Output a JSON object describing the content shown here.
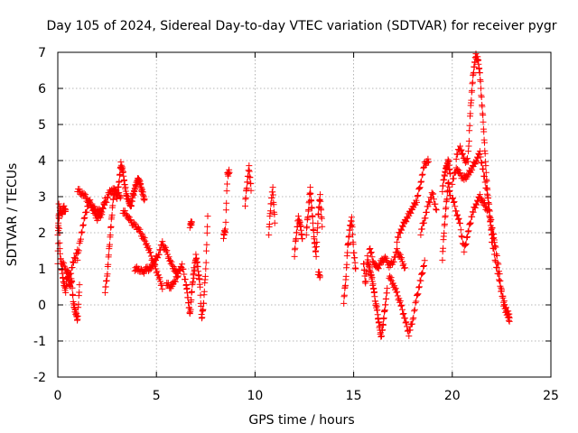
{
  "chart_data": {
    "type": "scatter",
    "title": "Day 105 of 2024, Sidereal Day-to-day VTEC variation (SDTVAR) for receiver pygr",
    "xlabel": "GPS time / hours",
    "ylabel": "SDTVAR / TECUs",
    "xlim": [
      0,
      25
    ],
    "ylim": [
      -2,
      7
    ],
    "xticks": [
      "0",
      "5",
      "10",
      "15",
      "20",
      "25"
    ],
    "yticks": [
      "-2",
      "-1",
      "0",
      "1",
      "2",
      "3",
      "4",
      "5",
      "6",
      "7"
    ],
    "grid": true,
    "marker": "+",
    "color": "#ff0000",
    "series": [
      {
        "name": "pygr",
        "segments": [
          [
            [
              0.0,
              1.2
            ],
            [
              0.05,
              2.8
            ],
            [
              0.1,
              1.5
            ],
            [
              0.2,
              1.0
            ],
            [
              0.3,
              0.6
            ],
            [
              0.4,
              0.4
            ],
            [
              0.5,
              0.9
            ],
            [
              0.6,
              0.5
            ],
            [
              0.7,
              0.7
            ],
            [
              0.8,
              0.0
            ],
            [
              0.9,
              -0.2
            ],
            [
              1.0,
              -0.4
            ],
            [
              1.1,
              0.5
            ]
          ],
          [
            [
              0.0,
              2.0
            ],
            [
              0.1,
              2.7
            ],
            [
              0.2,
              2.5
            ],
            [
              0.3,
              2.7
            ],
            [
              0.4,
              2.6
            ]
          ],
          [
            [
              0.2,
              1.2
            ],
            [
              0.4,
              1.0
            ],
            [
              0.6,
              0.8
            ],
            [
              0.8,
              1.2
            ],
            [
              1.0,
              1.5
            ]
          ],
          [
            [
              1.0,
              1.3
            ],
            [
              1.2,
              2.0
            ],
            [
              1.4,
              2.5
            ],
            [
              1.6,
              2.9
            ],
            [
              1.8,
              2.6
            ],
            [
              2.0,
              2.4
            ],
            [
              2.2,
              2.5
            ],
            [
              2.4,
              2.9
            ]
          ],
          [
            [
              1.0,
              3.2
            ],
            [
              1.2,
              3.1
            ],
            [
              1.4,
              3.0
            ],
            [
              1.6,
              2.8
            ],
            [
              1.8,
              2.7
            ],
            [
              2.0,
              2.6
            ],
            [
              2.2,
              2.6
            ],
            [
              2.4,
              2.8
            ],
            [
              2.6,
              3.1
            ],
            [
              2.8,
              3.2
            ],
            [
              3.0,
              3.1
            ],
            [
              3.2,
              3.0
            ]
          ],
          [
            [
              2.4,
              0.4
            ],
            [
              2.5,
              0.8
            ],
            [
              2.6,
              1.5
            ],
            [
              2.7,
              2.2
            ],
            [
              2.8,
              2.9
            ],
            [
              2.9,
              3.2
            ],
            [
              3.0,
              3.0
            ]
          ],
          [
            [
              3.0,
              3.0
            ],
            [
              3.1,
              3.4
            ],
            [
              3.2,
              3.9
            ],
            [
              3.3,
              3.7
            ],
            [
              3.4,
              3.3
            ],
            [
              3.5,
              3.0
            ],
            [
              3.6,
              2.9
            ],
            [
              3.7,
              2.7
            ],
            [
              3.8,
              3.0
            ],
            [
              3.9,
              3.2
            ],
            [
              4.0,
              3.4
            ],
            [
              4.1,
              3.5
            ],
            [
              4.2,
              3.3
            ],
            [
              4.3,
              3.1
            ],
            [
              4.4,
              2.9
            ]
          ],
          [
            [
              3.3,
              2.6
            ],
            [
              3.5,
              2.5
            ],
            [
              3.7,
              2.3
            ],
            [
              3.9,
              2.2
            ],
            [
              4.1,
              2.1
            ],
            [
              4.3,
              1.9
            ],
            [
              4.5,
              1.7
            ],
            [
              4.7,
              1.4
            ],
            [
              4.9,
              1.1
            ],
            [
              5.1,
              0.8
            ],
            [
              5.3,
              0.5
            ]
          ],
          [
            [
              3.9,
              1.0
            ],
            [
              4.1,
              1.0
            ],
            [
              4.3,
              0.9
            ],
            [
              4.5,
              1.0
            ],
            [
              4.7,
              1.0
            ],
            [
              4.9,
              1.2
            ],
            [
              5.1,
              1.4
            ],
            [
              5.3,
              1.7
            ],
            [
              5.5,
              1.5
            ],
            [
              5.7,
              1.2
            ],
            [
              5.9,
              1.0
            ],
            [
              6.1,
              0.8
            ]
          ],
          [
            [
              5.5,
              0.6
            ],
            [
              5.7,
              0.5
            ],
            [
              5.9,
              0.6
            ],
            [
              6.1,
              0.9
            ],
            [
              6.3,
              1.1
            ],
            [
              6.5,
              0.6
            ],
            [
              6.6,
              0.2
            ],
            [
              6.7,
              -0.3
            ],
            [
              6.8,
              0.4
            ],
            [
              6.9,
              1.0
            ]
          ],
          [
            [
              6.7,
              2.2
            ],
            [
              6.8,
              2.3
            ]
          ],
          [
            [
              6.9,
              0.8
            ],
            [
              7.0,
              1.4
            ],
            [
              7.1,
              1.0
            ],
            [
              7.2,
              0.6
            ],
            [
              7.3,
              -0.4
            ],
            [
              7.4,
              0.1
            ],
            [
              7.5,
              1.0
            ],
            [
              7.6,
              2.4
            ]
          ],
          [
            [
              8.4,
              1.9
            ],
            [
              8.5,
              2.1
            ],
            [
              8.6,
              3.6
            ],
            [
              8.7,
              3.7
            ]
          ],
          [
            [
              9.5,
              2.8
            ],
            [
              9.6,
              3.4
            ],
            [
              9.7,
              3.8
            ],
            [
              9.8,
              3.2
            ]
          ],
          [
            [
              10.7,
              2.0
            ],
            [
              10.8,
              2.8
            ],
            [
              10.9,
              3.2
            ],
            [
              11.0,
              2.3
            ]
          ],
          [
            [
              12.0,
              1.4
            ],
            [
              12.1,
              2.0
            ],
            [
              12.2,
              2.4
            ],
            [
              12.3,
              2.2
            ],
            [
              12.4,
              1.8
            ]
          ],
          [
            [
              12.6,
              2.0
            ],
            [
              12.7,
              2.6
            ],
            [
              12.8,
              3.2
            ],
            [
              12.9,
              2.5
            ],
            [
              13.0,
              1.8
            ],
            [
              13.1,
              1.4
            ],
            [
              13.2,
              2.5
            ],
            [
              13.3,
              3.0
            ],
            [
              13.4,
              2.2
            ]
          ],
          [
            [
              13.2,
              0.9
            ],
            [
              13.3,
              0.8
            ]
          ],
          [
            [
              14.5,
              0.1
            ],
            [
              14.6,
              0.7
            ],
            [
              14.7,
              1.6
            ],
            [
              14.8,
              2.1
            ],
            [
              14.9,
              2.4
            ],
            [
              15.0,
              1.5
            ],
            [
              15.1,
              1.0
            ]
          ],
          [
            [
              15.5,
              1.2
            ],
            [
              15.6,
              0.6
            ],
            [
              15.7,
              1.3
            ],
            [
              15.8,
              1.0
            ],
            [
              15.9,
              0.8
            ],
            [
              16.0,
              0.5
            ],
            [
              16.1,
              0.1
            ],
            [
              16.2,
              -0.2
            ],
            [
              16.3,
              -0.6
            ],
            [
              16.4,
              -0.9
            ],
            [
              16.5,
              -0.5
            ],
            [
              16.6,
              0.0
            ],
            [
              16.7,
              0.4
            ]
          ],
          [
            [
              15.8,
              1.6
            ],
            [
              16.0,
              1.2
            ],
            [
              16.2,
              1.0
            ],
            [
              16.4,
              1.2
            ],
            [
              16.6,
              1.3
            ],
            [
              16.8,
              1.1
            ],
            [
              17.0,
              1.2
            ],
            [
              17.2,
              1.5
            ],
            [
              17.4,
              1.3
            ],
            [
              17.6,
              1.0
            ]
          ],
          [
            [
              16.8,
              0.8
            ],
            [
              17.0,
              0.6
            ],
            [
              17.2,
              0.3
            ],
            [
              17.4,
              0.0
            ],
            [
              17.6,
              -0.4
            ],
            [
              17.8,
              -0.8
            ],
            [
              18.0,
              -0.4
            ],
            [
              18.2,
              0.2
            ],
            [
              18.4,
              0.7
            ],
            [
              18.6,
              1.2
            ]
          ],
          [
            [
              17.2,
              1.8
            ],
            [
              17.4,
              2.1
            ],
            [
              17.6,
              2.3
            ],
            [
              17.8,
              2.5
            ],
            [
              18.0,
              2.7
            ],
            [
              18.2,
              2.9
            ],
            [
              18.4,
              3.4
            ],
            [
              18.6,
              3.9
            ],
            [
              18.8,
              4.0
            ]
          ],
          [
            [
              18.4,
              2.0
            ],
            [
              18.6,
              2.4
            ],
            [
              18.8,
              2.8
            ],
            [
              19.0,
              3.1
            ],
            [
              19.2,
              2.6
            ]
          ],
          [
            [
              19.5,
              1.3
            ],
            [
              19.6,
              2.2
            ],
            [
              19.7,
              2.8
            ],
            [
              19.8,
              3.4
            ],
            [
              19.9,
              3.0
            ]
          ],
          [
            [
              19.5,
              3.2
            ],
            [
              19.6,
              3.6
            ],
            [
              19.7,
              3.8
            ],
            [
              19.8,
              4.0
            ],
            [
              19.9,
              3.6
            ]
          ],
          [
            [
              20.0,
              3.0
            ],
            [
              20.2,
              2.6
            ],
            [
              20.4,
              2.2
            ],
            [
              20.6,
              1.5
            ],
            [
              20.8,
              2.0
            ],
            [
              21.0,
              2.5
            ],
            [
              21.2,
              2.8
            ],
            [
              21.4,
              3.0
            ],
            [
              21.6,
              2.8
            ],
            [
              21.8,
              2.6
            ]
          ],
          [
            [
              20.0,
              3.4
            ],
            [
              20.2,
              3.8
            ],
            [
              20.4,
              3.6
            ],
            [
              20.6,
              3.5
            ],
            [
              20.8,
              3.6
            ],
            [
              21.0,
              3.8
            ],
            [
              21.2,
              4.0
            ],
            [
              21.4,
              4.2
            ],
            [
              21.6,
              3.6
            ],
            [
              21.8,
              3.0
            ],
            [
              22.0,
              2.2
            ],
            [
              22.2,
              1.6
            ]
          ],
          [
            [
              20.2,
              4.1
            ],
            [
              20.4,
              4.4
            ],
            [
              20.6,
              4.0
            ],
            [
              20.8,
              4.0
            ],
            [
              20.9,
              5.2
            ],
            [
              21.0,
              6.0
            ],
            [
              21.1,
              6.6
            ],
            [
              21.2,
              6.9
            ],
            [
              21.3,
              6.8
            ],
            [
              21.4,
              6.4
            ],
            [
              21.5,
              5.6
            ],
            [
              21.6,
              4.8
            ],
            [
              21.7,
              3.8
            ],
            [
              21.8,
              3.0
            ],
            [
              21.9,
              2.4
            ],
            [
              22.0,
              2.0
            ],
            [
              22.2,
              1.6
            ],
            [
              22.4,
              0.8
            ],
            [
              22.6,
              0.0
            ],
            [
              22.8,
              -0.3
            ],
            [
              22.9,
              -0.4
            ]
          ],
          [
            [
              22.0,
              1.8
            ],
            [
              22.2,
              1.2
            ],
            [
              22.4,
              0.6
            ],
            [
              22.6,
              0.1
            ],
            [
              22.8,
              -0.2
            ],
            [
              22.9,
              -0.3
            ]
          ]
        ]
      }
    ]
  }
}
